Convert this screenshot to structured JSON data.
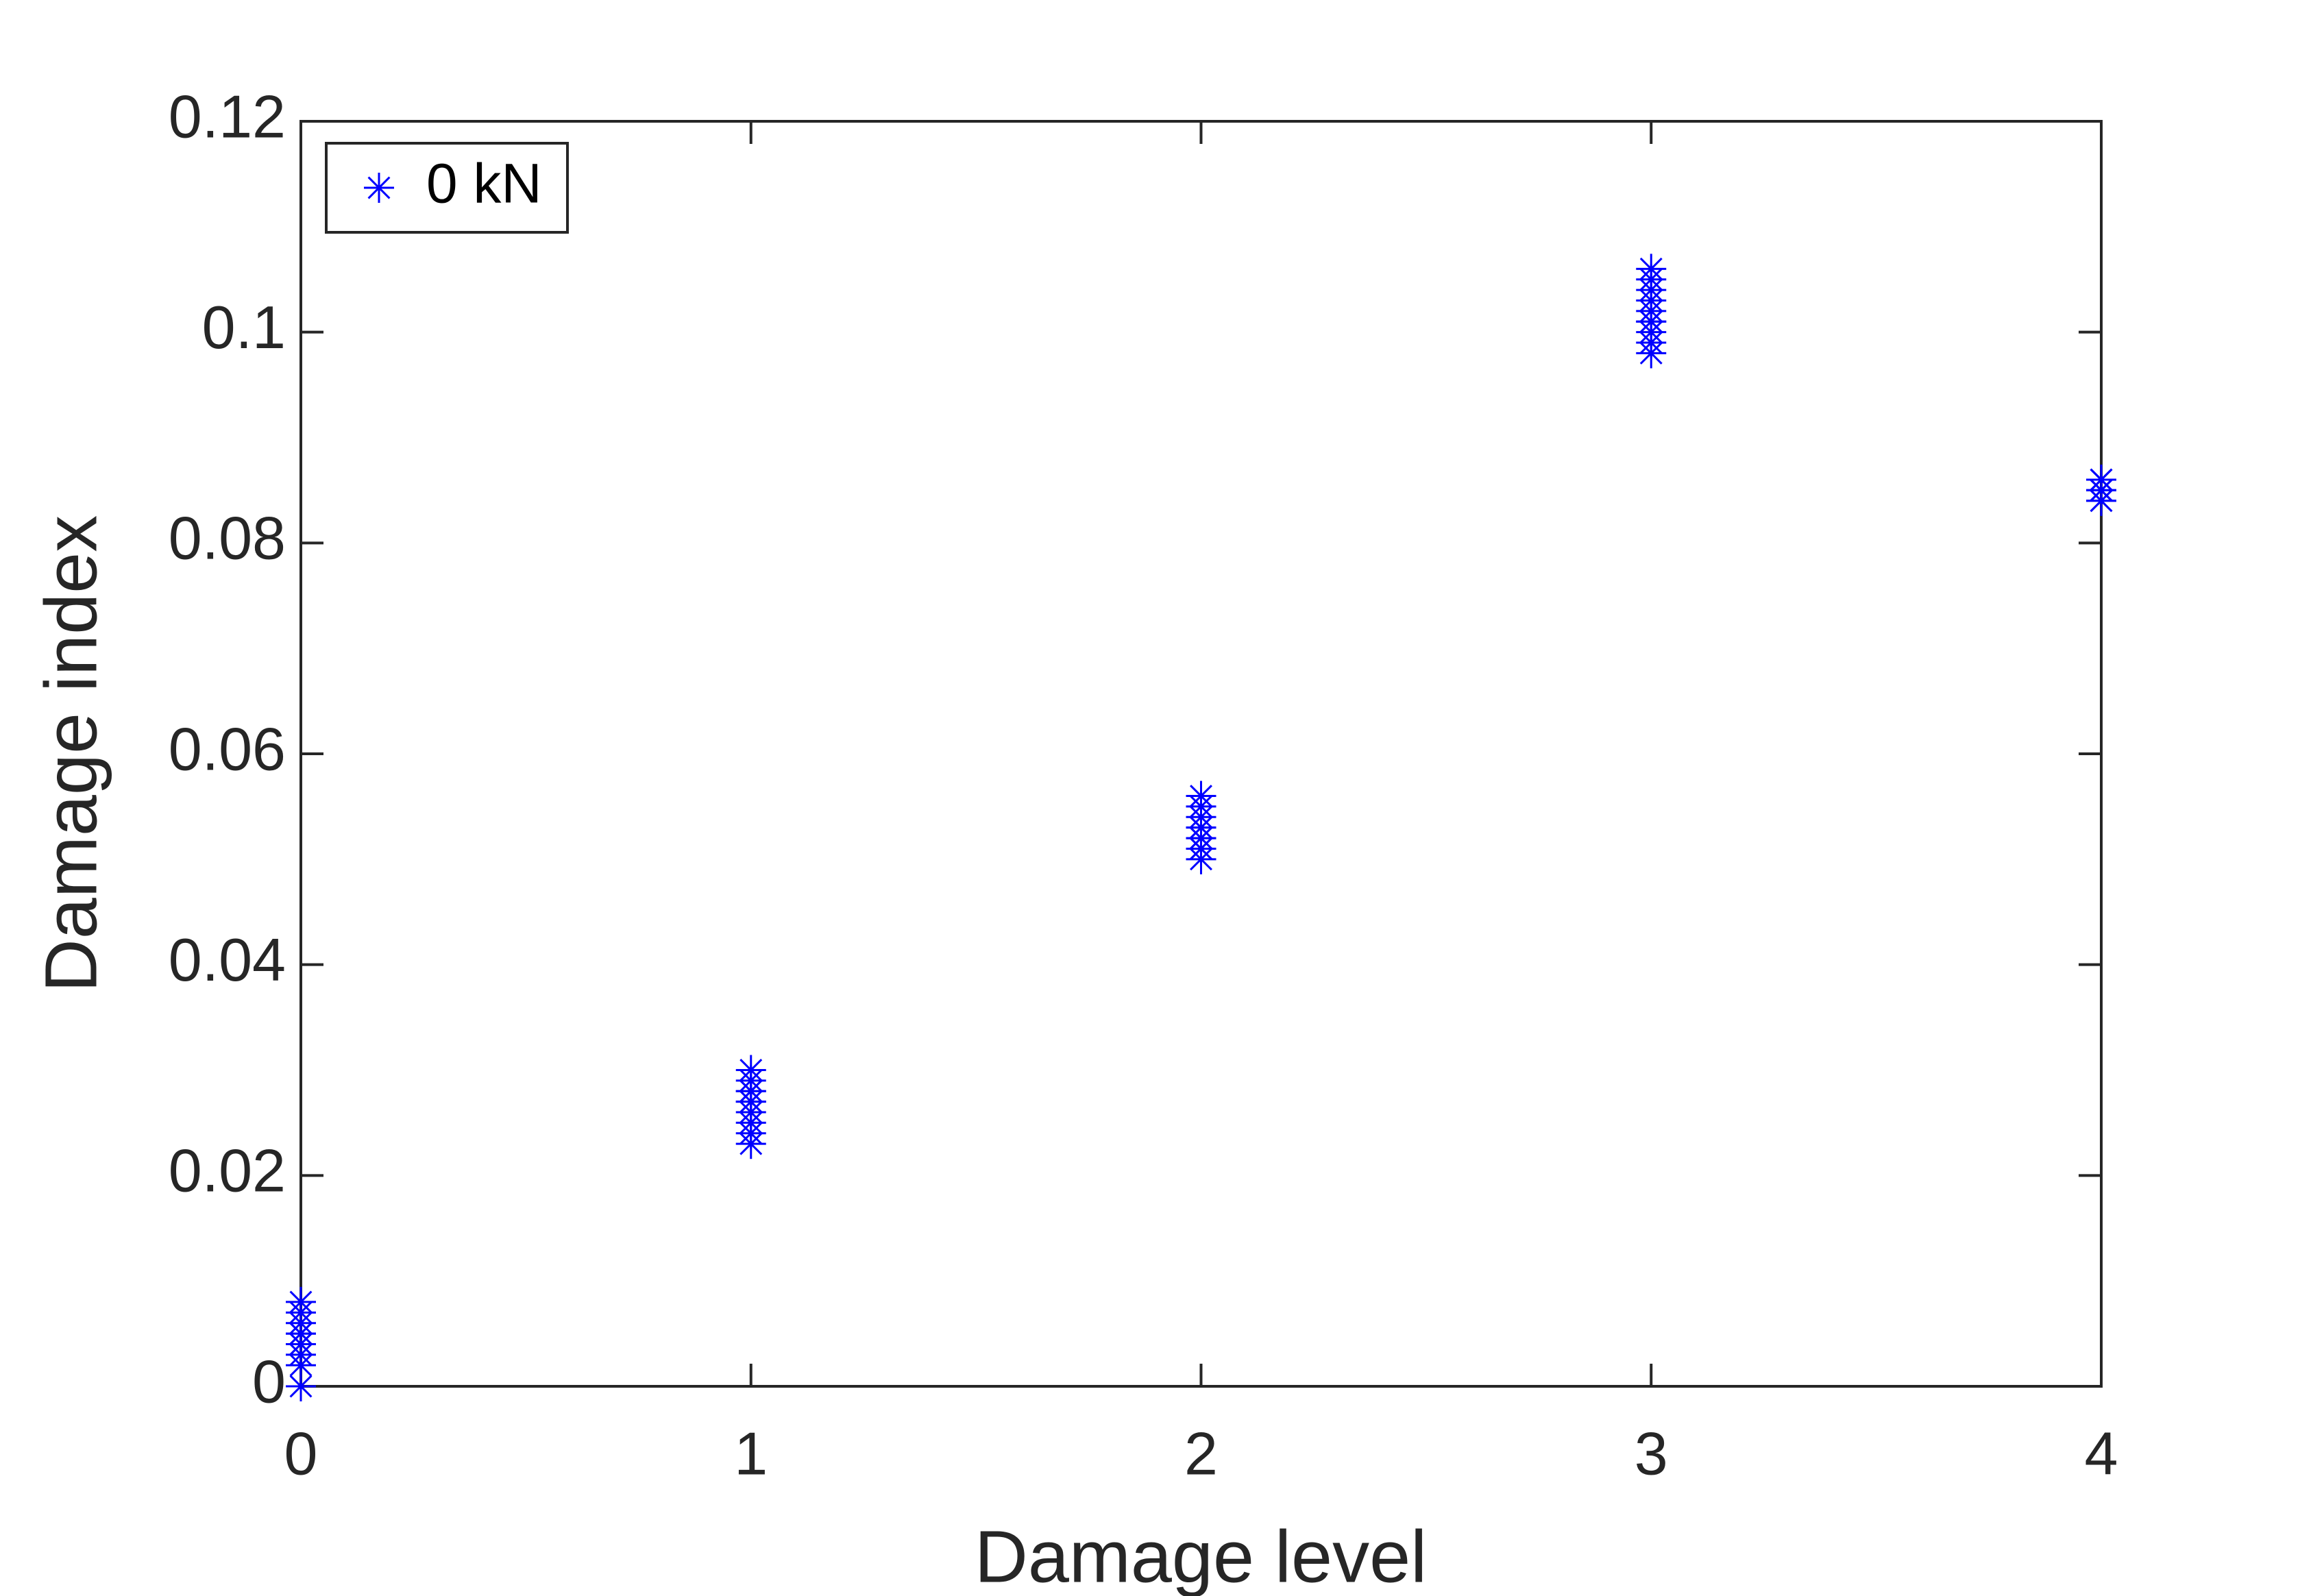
{
  "chart_data": {
    "type": "scatter",
    "xlabel": "Damage level",
    "ylabel": "Damage index",
    "xlim": [
      0,
      4
    ],
    "ylim": [
      0,
      0.12
    ],
    "xticks": [
      0,
      1,
      2,
      3,
      4
    ],
    "yticks": [
      0,
      0.02,
      0.04,
      0.06,
      0.08,
      0.1,
      0.12
    ],
    "legend": "upper left",
    "series": [
      {
        "name": "0 kN",
        "color": "#0000ff",
        "marker": "*",
        "x": [
          0,
          0,
          0,
          0,
          0,
          0,
          0,
          0,
          0,
          0,
          1,
          1,
          1,
          1,
          1,
          1,
          1,
          1,
          1,
          1,
          2,
          2,
          2,
          2,
          2,
          2,
          2,
          2,
          2,
          2,
          3,
          3,
          3,
          3,
          3,
          3,
          3,
          3,
          3,
          3,
          4,
          4,
          4,
          4,
          4,
          4,
          4,
          4,
          4,
          4
        ],
        "values": [
          0,
          0.002,
          0.003,
          0.004,
          0.004,
          0.005,
          0.005,
          0.006,
          0.007,
          0.008,
          0.023,
          0.024,
          0.025,
          0.026,
          0.027,
          0.027,
          0.028,
          0.028,
          0.029,
          0.03,
          0.05,
          0.051,
          0.051,
          0.052,
          0.052,
          0.053,
          0.053,
          0.054,
          0.055,
          0.056,
          0.098,
          0.099,
          0.1,
          0.101,
          0.101,
          0.102,
          0.103,
          0.104,
          0.105,
          0.106,
          0.084,
          0.084,
          0.085,
          0.085,
          0.085,
          0.085,
          0.085,
          0.086,
          0.086,
          0.086
        ]
      }
    ]
  }
}
